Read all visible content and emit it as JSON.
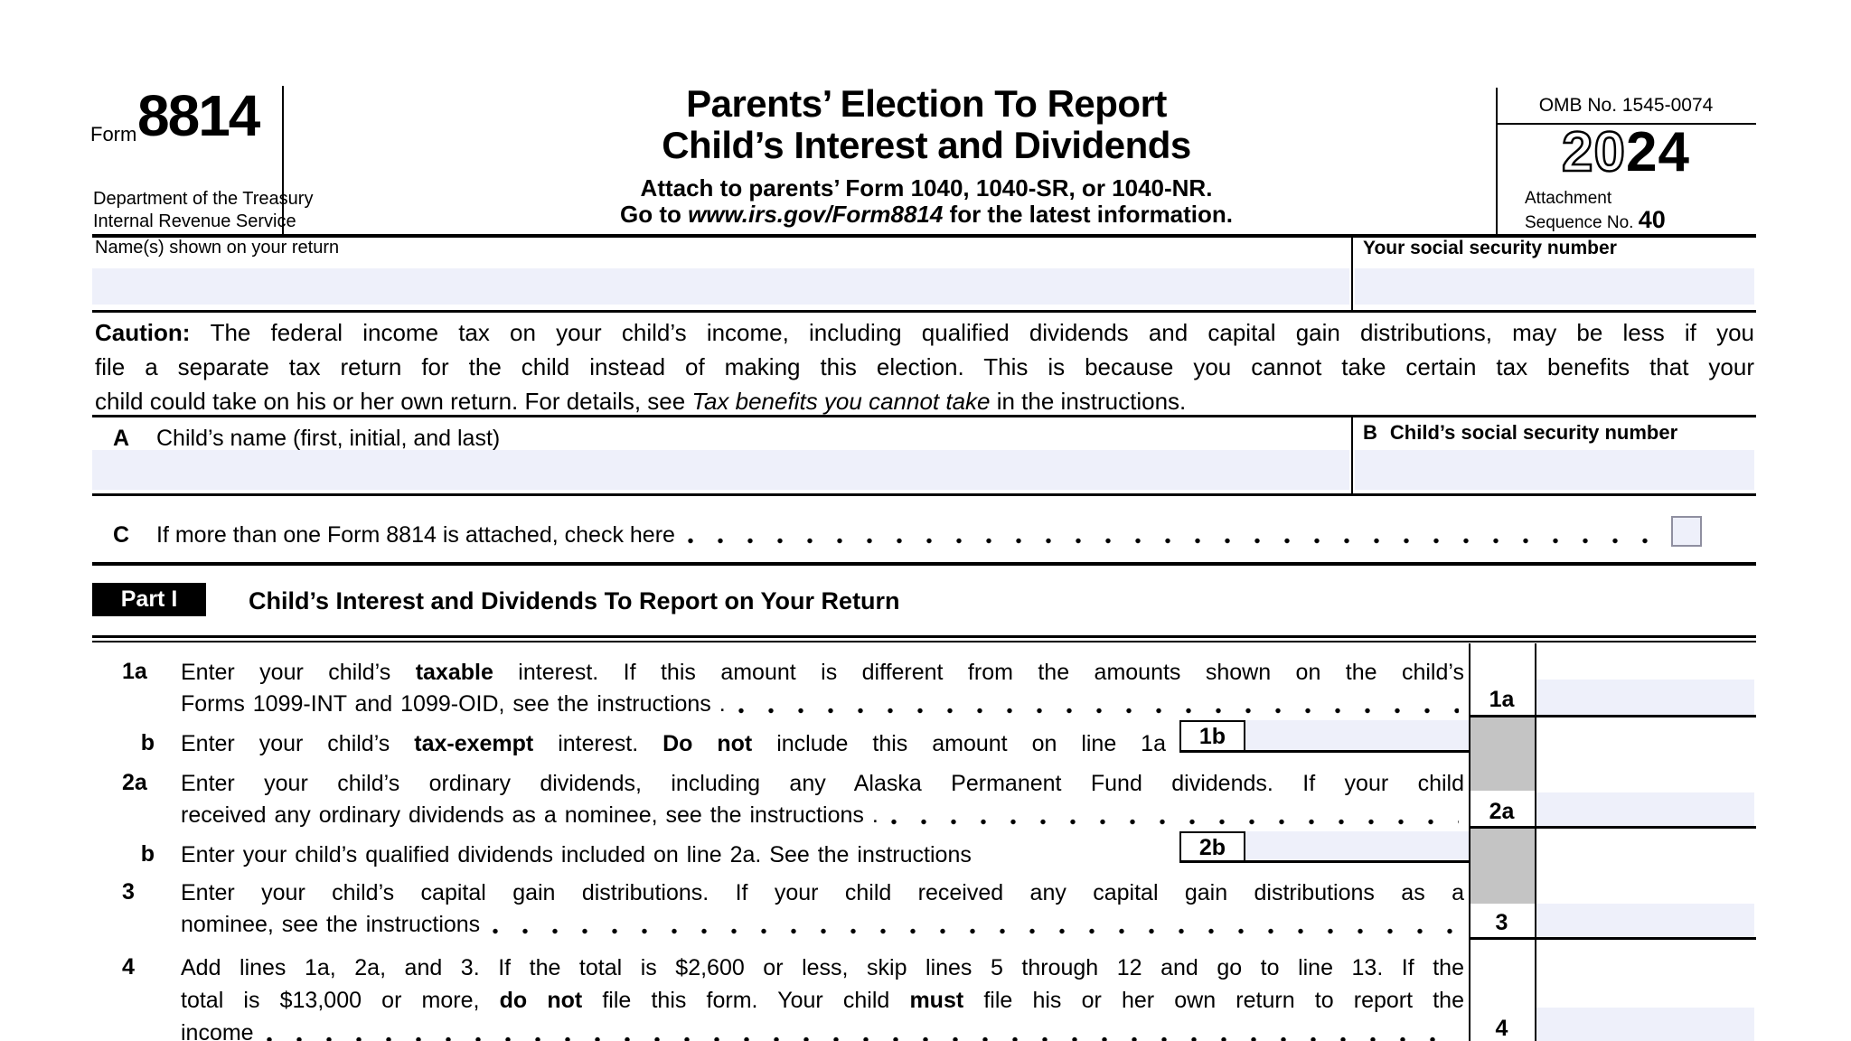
{
  "colors": {
    "field_fill": "#eef0fa",
    "shaded_cell": "#c4c4c4",
    "ink": "#000000"
  },
  "header": {
    "form_word": "Form",
    "form_number": "8814",
    "agency_line1": "Department of the Treasury",
    "agency_line2": "Internal Revenue Service",
    "title_line1": "Parents’ Election To Report",
    "title_line2": "Child’s Interest and Dividends",
    "attach_line": "Attach to parents’ Form 1040, 1040-SR, or 1040-NR.",
    "goto_rich": [
      {
        "t": "Go to "
      },
      {
        "t": "www.irs.gov/Form8814",
        "i": true
      },
      {
        "t": " for the latest information."
      }
    ],
    "omb": "OMB No. 1545-0074",
    "year_outline": "20",
    "year_solid": "24",
    "attachment_line1": "Attachment",
    "attachment_line2": "Sequence No. ",
    "attachment_number": "40"
  },
  "identity": {
    "name_label": "Name(s) shown on your return",
    "name_value": "",
    "ssn_label": "Your social security number",
    "ssn_value": ""
  },
  "caution_lines": [
    [
      {
        "t": "Caution: ",
        "b": true
      },
      {
        "t": "The federal income tax on your child’s income, including qualified dividends and capital gain distributions, may be less if you"
      }
    ],
    [
      {
        "t": "file a separate tax return for the child instead of making this election. This is because you cannot take certain tax benefits that your"
      }
    ],
    [
      {
        "t": "child could take on his or her own return. For details, see "
      },
      {
        "t": "Tax benefits you cannot take",
        "i": true
      },
      {
        "t": " in the instructions."
      }
    ]
  ],
  "child": {
    "a_letter": "A",
    "a_label": "Child’s name (first, initial, and last)",
    "a_value": "",
    "b_letter": "B",
    "b_label": "Child’s social security number",
    "b_value": "",
    "c_letter": "C",
    "c_label": "If more than one Form 8814 is attached, check here",
    "c_checked": false
  },
  "part1": {
    "badge": "Part I",
    "title": "Child’s Interest and Dividends To Report on Your Return",
    "items": [
      {
        "num": "1a",
        "line1": [
          {
            "t": "Enter your child’s "
          },
          {
            "t": "taxable",
            "b": true
          },
          {
            "t": " interest. If this amount is different from the amounts shown on the child’s"
          }
        ],
        "line2": [
          {
            "t": "Forms 1099-INT and 1099-OID, see the instructions ."
          }
        ],
        "box_label": "1a",
        "value": ""
      },
      {
        "num": "b",
        "line1": [
          {
            "t": "Enter your child’s "
          },
          {
            "t": "tax-exempt",
            "b": true
          },
          {
            "t": " interest. "
          },
          {
            "t": "Do not",
            "b": true
          },
          {
            "t": " include this amount on line 1a"
          }
        ],
        "inline_label": "1b",
        "value": ""
      },
      {
        "num": "2a",
        "line1": [
          {
            "t": "Enter your child’s ordinary dividends, including any Alaska Permanent Fund dividends. If your child"
          }
        ],
        "line2": [
          {
            "t": "received any ordinary dividends as a nominee, see the instructions ."
          }
        ],
        "box_label": "2a",
        "value": ""
      },
      {
        "num": "b",
        "line1": [
          {
            "t": "Enter your child’s qualified dividends included on line 2a. See the instructions"
          }
        ],
        "inline_label": "2b",
        "value": ""
      },
      {
        "num": "3",
        "line1": [
          {
            "t": "Enter your child’s capital gain distributions. If your child received any capital gain distributions as a"
          }
        ],
        "line2": [
          {
            "t": "nominee, see the instructions"
          }
        ],
        "box_label": "3",
        "value": ""
      },
      {
        "num": "4",
        "line1": [
          {
            "t": "Add lines 1a, 2a, and 3. If the total is $2,600 or less, skip lines 5 through 12 and go to line 13. If the"
          }
        ],
        "line2": [
          {
            "t": "total is $13,000 or more, "
          },
          {
            "t": "do not",
            "b": true
          },
          {
            "t": " file this form. Your child "
          },
          {
            "t": "must",
            "b": true
          },
          {
            "t": " file his or her own return to report the"
          }
        ],
        "line3": [
          {
            "t": "income"
          }
        ],
        "box_label": "4",
        "value": ""
      }
    ]
  }
}
